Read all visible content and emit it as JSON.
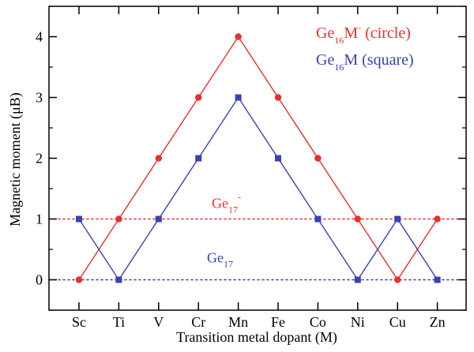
{
  "chart_data": {
    "type": "line",
    "xlabel": "Transition metal dopant (M)",
    "ylabel": "Magnetic moment (μB)",
    "categories": [
      "Sc",
      "Ti",
      "V",
      "Cr",
      "Mn",
      "Fe",
      "Co",
      "Ni",
      "Cu",
      "Zn"
    ],
    "ylim": [
      -0.5,
      4.5
    ],
    "yticks": [
      0,
      1,
      2,
      3,
      4
    ],
    "grid": false,
    "legend_position": "top-right",
    "series": [
      {
        "name": "Ge16M- (circle)",
        "label_base": "Ge",
        "label_sub": "16",
        "label_mid": "M",
        "label_sup": "-",
        "label_tail": " (circle)",
        "marker": "circle",
        "color": "#e8302c",
        "values": [
          0,
          1,
          2,
          3,
          4,
          3,
          2,
          1,
          0,
          1
        ]
      },
      {
        "name": "Ge16M (square)",
        "label_base": "Ge",
        "label_sub": "16",
        "label_mid": "M",
        "label_sup": "",
        "label_tail": " (square)",
        "marker": "square",
        "color": "#3a42b2",
        "values": [
          1,
          0,
          1,
          2,
          3,
          2,
          1,
          0,
          1,
          0
        ]
      }
    ],
    "reference_lines": [
      {
        "y": 1,
        "label_base": "Ge",
        "label_sub": "17",
        "label_sup": "-",
        "color": "#e8302c",
        "style": "dotted"
      },
      {
        "y": 0,
        "label_base": "Ge",
        "label_sub": "17",
        "label_sup": "",
        "color": "#3a42b2",
        "style": "dotted"
      }
    ]
  }
}
